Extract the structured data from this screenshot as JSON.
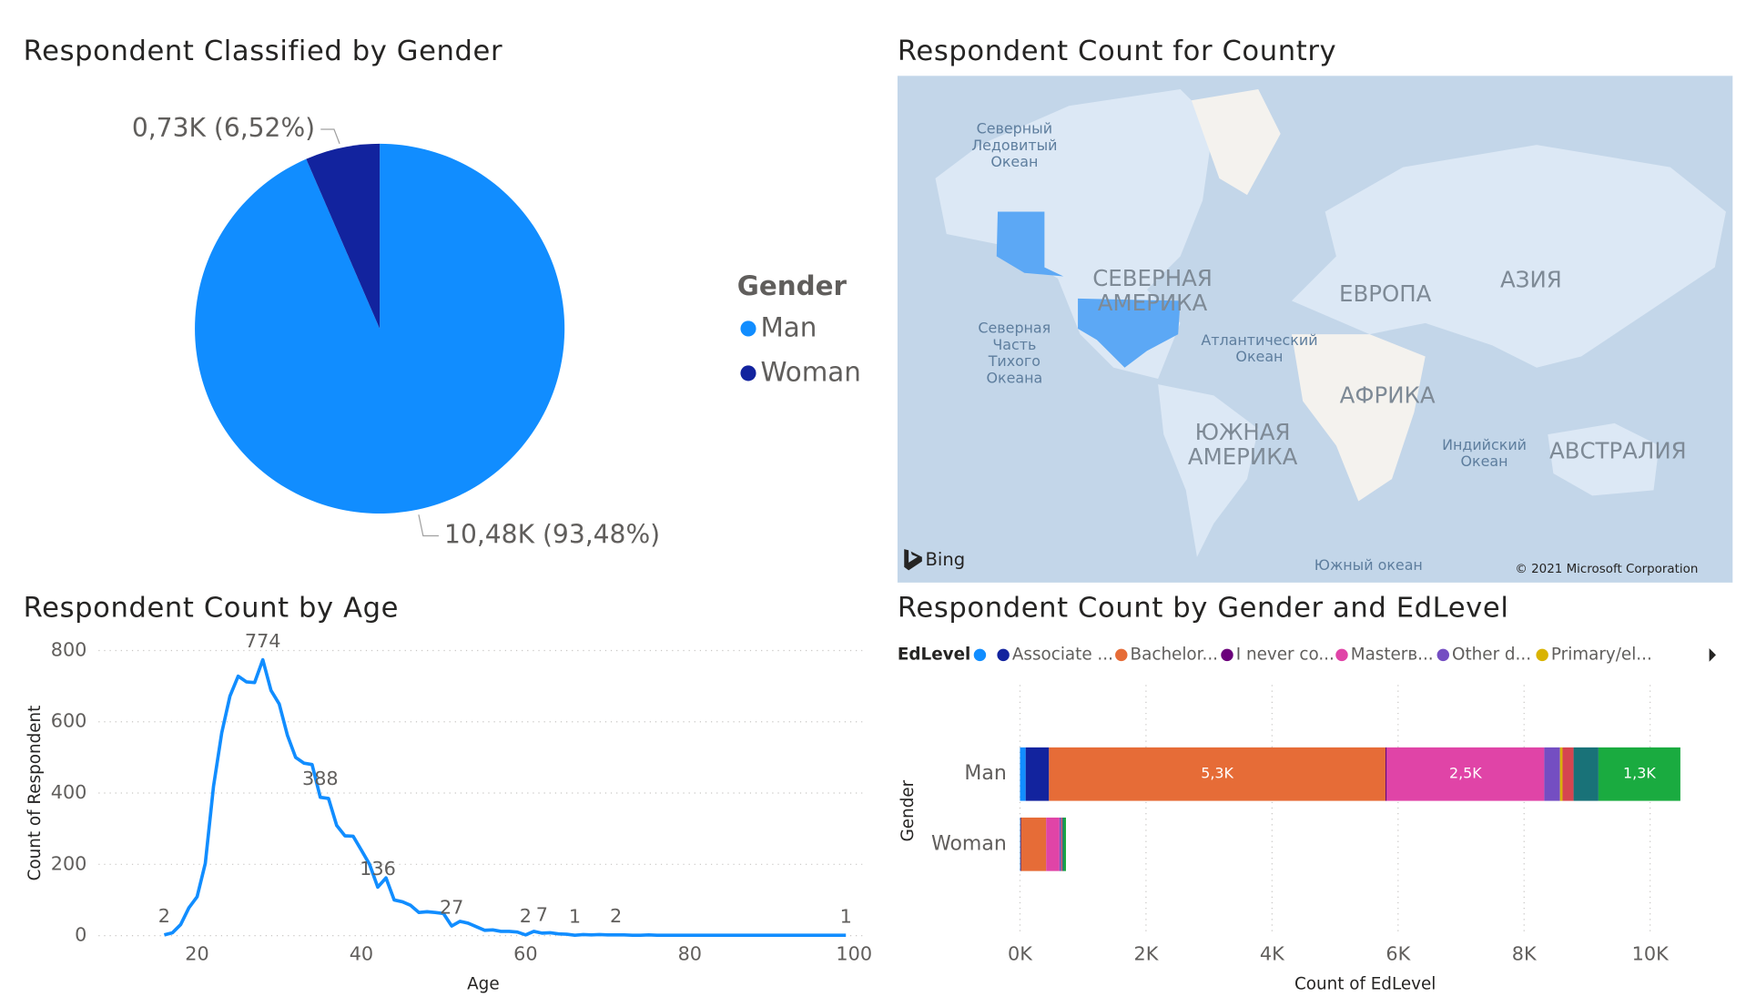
{
  "chart_data": [
    {
      "type": "pie",
      "title": "Respondent Classified by Gender",
      "legend_title": "Gender",
      "categories": [
        "Man",
        "Woman"
      ],
      "values": [
        10480,
        730
      ],
      "value_labels": [
        "10,48K (93,48%)",
        "0,73K (6,52%)"
      ],
      "colors": [
        "#118DFF",
        "#12239E"
      ]
    },
    {
      "type": "map",
      "title": "Respondent Count for Country",
      "labels": [
        [
          "Северный",
          "Ледовитый",
          "Океан"
        ],
        [
          "СЕВЕРНАЯ",
          "АМЕРИКА"
        ],
        [
          "ЕВРОПА"
        ],
        [
          "АЗИЯ"
        ],
        [
          "Северная",
          "Часть",
          "Тихого",
          "Океана"
        ],
        [
          "Атлантический",
          "Океан"
        ],
        [
          "АФРИКА"
        ],
        [
          "ЮЖНАЯ",
          "АМЕРИКА"
        ],
        [
          "Индийский",
          "Океан"
        ],
        [
          "АВСТРАЛИЯ"
        ],
        [
          "Южный океан"
        ]
      ],
      "attribution": "Bing",
      "copyright": "© 2021 Microsoft Corporation"
    },
    {
      "type": "line",
      "title": "Respondent Count by Age",
      "x_label": "Age",
      "y_label": "Count of Respondent",
      "color": "#118DFF",
      "x": [
        16,
        17,
        18,
        19,
        20,
        21,
        22,
        23,
        24,
        25,
        26,
        27,
        28,
        29,
        30,
        31,
        32,
        33,
        34,
        35,
        36,
        37,
        38,
        39,
        40,
        41,
        42,
        43,
        44,
        45,
        46,
        47,
        48,
        49,
        50,
        51,
        52,
        53,
        54,
        55,
        56,
        57,
        58,
        59,
        60,
        61,
        62,
        63,
        64,
        65,
        66,
        67,
        68,
        69,
        70,
        71,
        72,
        73,
        74,
        75,
        76,
        77,
        78,
        79,
        80,
        81,
        82,
        83,
        84,
        85,
        86,
        87,
        88,
        89,
        90,
        91,
        92,
        93,
        94,
        95,
        96,
        97,
        98,
        99
      ],
      "values": [
        2,
        8,
        31,
        78,
        109,
        203,
        419,
        569,
        672,
        728,
        712,
        710,
        774,
        688,
        650,
        562,
        500,
        484,
        480,
        388,
        385,
        309,
        280,
        279,
        240,
        200,
        136,
        162,
        100,
        95,
        85,
        65,
        67,
        65,
        62,
        27,
        40,
        35,
        25,
        15,
        16,
        12,
        12,
        10,
        2,
        12,
        7,
        8,
        5,
        4,
        1,
        3,
        2,
        3,
        2,
        2,
        2,
        1,
        1,
        2,
        1,
        1,
        1,
        1,
        1,
        1,
        1,
        1,
        1,
        1,
        1,
        1,
        1,
        1,
        1,
        1,
        1,
        1,
        1,
        1,
        1,
        1,
        1,
        1
      ],
      "value_labels": [
        "2",
        null,
        null,
        null,
        null,
        null,
        null,
        null,
        null,
        null,
        null,
        null,
        "774",
        null,
        null,
        null,
        null,
        null,
        null,
        "388",
        null,
        null,
        null,
        null,
        null,
        null,
        "136",
        null,
        null,
        null,
        null,
        null,
        null,
        null,
        null,
        "27",
        null,
        null,
        null,
        null,
        null,
        null,
        null,
        null,
        "2",
        null,
        "7",
        null,
        null,
        null,
        "1",
        null,
        null,
        null,
        null,
        "2",
        null,
        null,
        null,
        null,
        null,
        null,
        null,
        null,
        null,
        null,
        null,
        null,
        null,
        null,
        null,
        null,
        null,
        null,
        null,
        null,
        null,
        null,
        null,
        null,
        null,
        null,
        null,
        "1"
      ],
      "xlim": [
        8,
        101
      ],
      "ylim": [
        0,
        800
      ],
      "xticks": [
        20,
        40,
        60,
        80,
        100
      ],
      "yticks": [
        0,
        200,
        400,
        600,
        800
      ],
      "grid": true
    },
    {
      "type": "stacked_barh",
      "title": "Respondent Count by Gender and EdLevel",
      "legend_title": "EdLevel",
      "y_label": "Gender",
      "x_label": "Count of EdLevel",
      "categories": [
        "Man",
        "Woman"
      ],
      "series": [
        {
          "name": null,
          "color": "#118DFF",
          "values": [
            90,
            5
          ],
          "value_labels": [
            null,
            null
          ]
        },
        {
          "name": "Associate ...",
          "color": "#12239E",
          "values": [
            370,
            10
          ],
          "value_labels": [
            null,
            null
          ]
        },
        {
          "name": "Bachelor...",
          "color": "#E66C37",
          "values": [
            5340,
            400
          ],
          "value_labels": [
            "5,3K",
            null
          ]
        },
        {
          "name": "I never co...",
          "color": "#6B007B",
          "values": [
            20,
            1
          ],
          "value_labels": [
            null,
            null
          ]
        },
        {
          "name": "Masterв...",
          "color": "#E044A7",
          "values": [
            2500,
            210
          ],
          "value_labels": [
            "2,5K",
            null
          ]
        },
        {
          "name": "Other d...",
          "color": "#744EC2",
          "values": [
            250,
            30
          ],
          "value_labels": [
            null,
            null
          ]
        },
        {
          "name": "Primary/el...",
          "color": "#D9B300",
          "values": [
            40,
            3
          ],
          "value_labels": [
            null,
            null
          ]
        },
        {
          "name": null,
          "color": "#D64550",
          "values": [
            175,
            15
          ],
          "value_labels": [
            null,
            null
          ]
        },
        {
          "name": null,
          "color": "#197278",
          "values": [
            395,
            20
          ],
          "value_labels": [
            null,
            null
          ]
        },
        {
          "name": null,
          "color": "#1AAB40",
          "values": [
            1300,
            36
          ],
          "value_labels": [
            "1,3K",
            null
          ]
        }
      ],
      "xlim": [
        0,
        10850
      ],
      "xticks": [
        {
          "value": 0,
          "label": "0K"
        },
        {
          "value": 2000,
          "label": "2K"
        },
        {
          "value": 4000,
          "label": "4K"
        },
        {
          "value": 6000,
          "label": "6K"
        },
        {
          "value": 8000,
          "label": "8K"
        },
        {
          "value": 10000,
          "label": "10K"
        }
      ],
      "grid": true
    }
  ]
}
